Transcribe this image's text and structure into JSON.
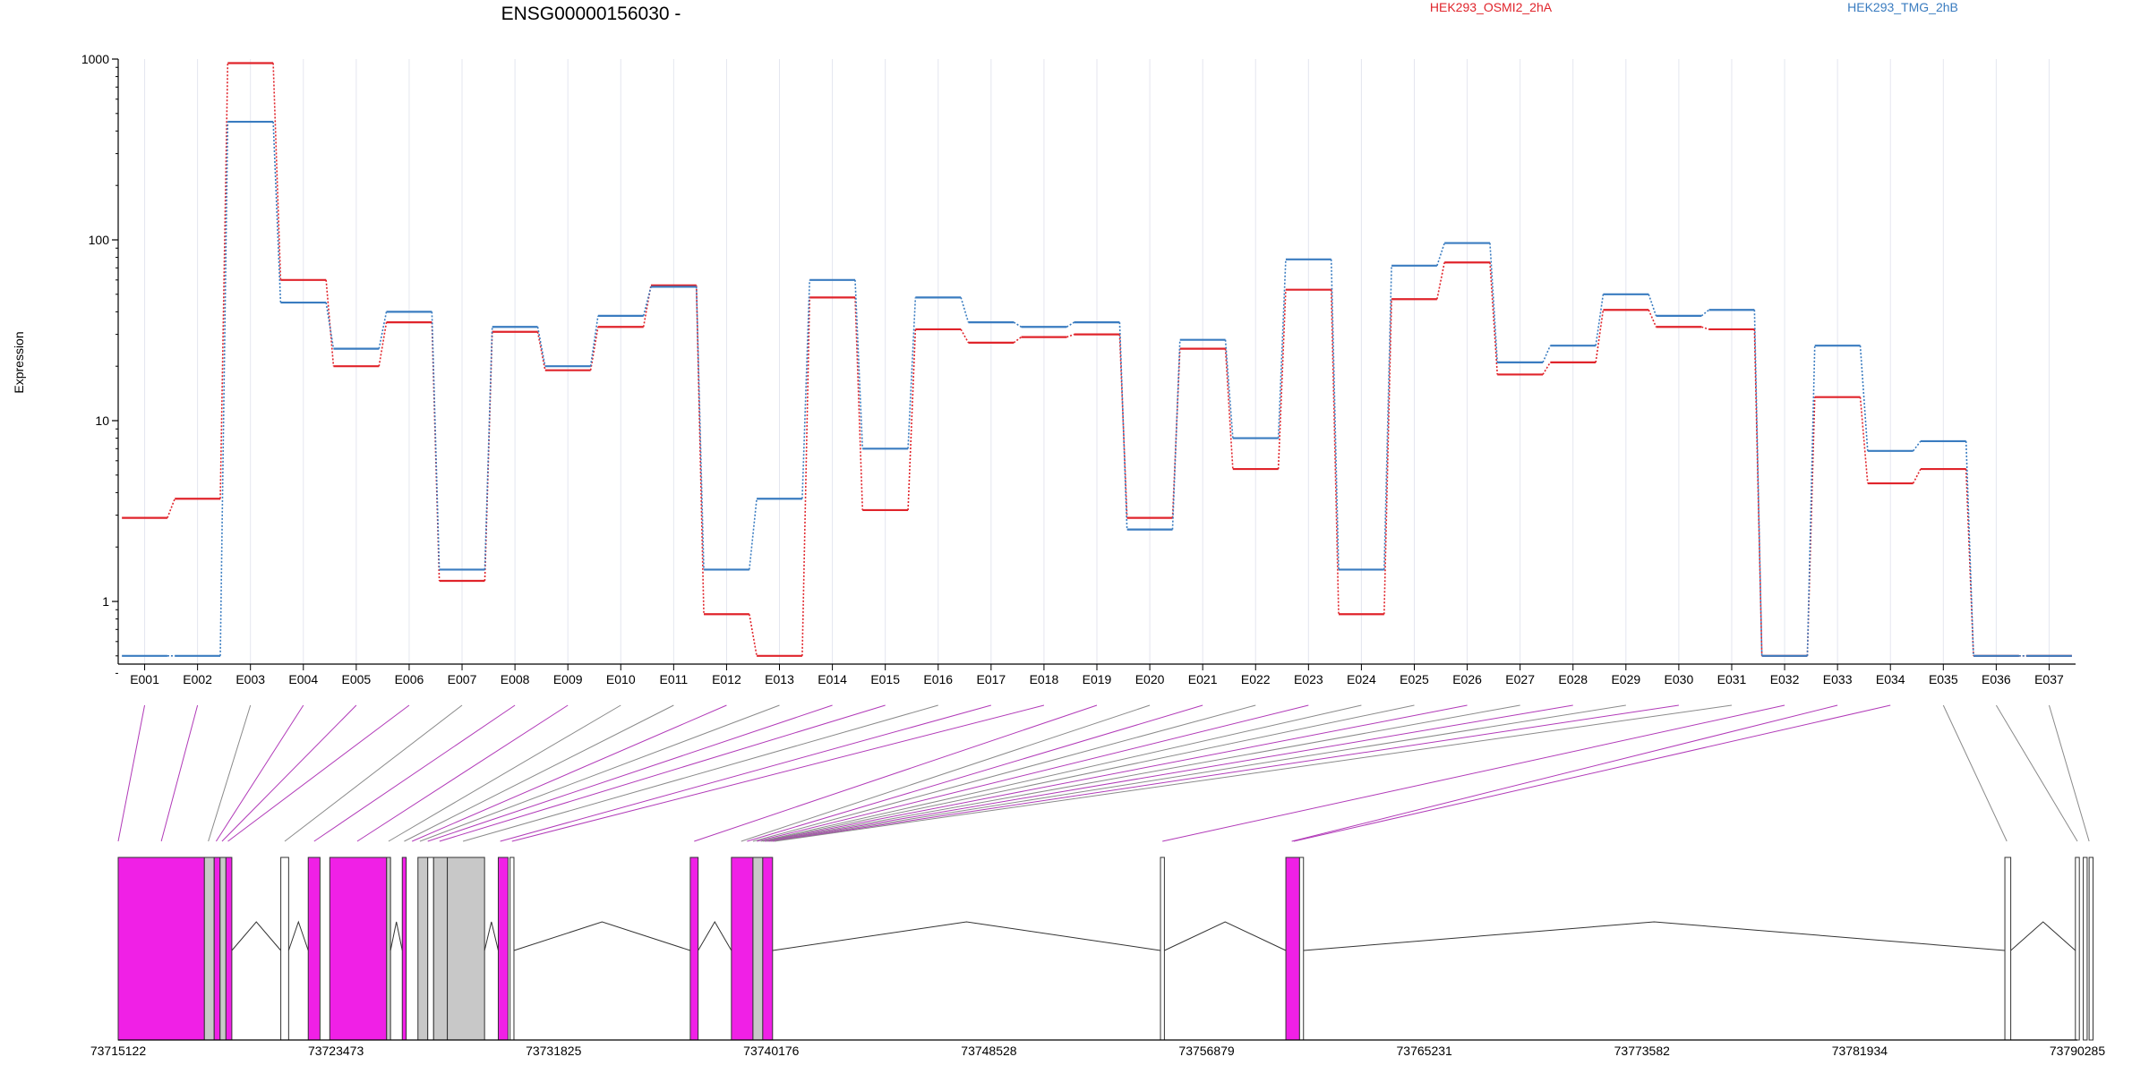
{
  "chart_data": {
    "type": "line",
    "title": "ENSG00000156030 -",
    "ylabel": "Expression",
    "yscale": "log",
    "ylim": [
      0.4,
      1000
    ],
    "yticks": [
      "1",
      "10",
      "100",
      "1000"
    ],
    "grid": "vertical, light",
    "legend_position": "top",
    "categories": [
      "E001",
      "E002",
      "E003",
      "E004",
      "E005",
      "E006",
      "E007",
      "E008",
      "E009",
      "E010",
      "E011",
      "E012",
      "E013",
      "E014",
      "E015",
      "E016",
      "E017",
      "E018",
      "E019",
      "E020",
      "E021",
      "E022",
      "E023",
      "E024",
      "E025",
      "E026",
      "E027",
      "E028",
      "E029",
      "E030",
      "E031",
      "E032",
      "E033",
      "E034",
      "E035",
      "E036",
      "E037"
    ],
    "series": [
      {
        "name": "HEK293_OSMI2_2hA",
        "color": "#e0242b",
        "values": [
          2.9,
          3.7,
          950,
          60,
          20,
          35,
          1.3,
          31,
          19,
          33,
          56,
          0.85,
          0.5,
          48,
          3.2,
          32,
          27,
          29,
          30,
          2.9,
          25,
          5.4,
          53,
          0.85,
          47,
          75,
          18,
          21,
          41,
          33,
          32,
          0.5,
          13.5,
          4.5,
          5.4,
          0.5,
          0.5
        ]
      },
      {
        "name": "HEK293_TMG_2hB",
        "color": "#3a7cc0",
        "values": [
          0.5,
          0.5,
          450,
          45,
          25,
          40,
          1.5,
          33,
          20,
          38,
          55,
          1.5,
          3.7,
          60,
          7,
          48,
          35,
          33,
          35,
          2.5,
          28,
          8,
          78,
          1.5,
          72,
          96,
          21,
          26,
          50,
          38,
          41,
          0.5,
          26,
          6.8,
          7.7,
          0.5,
          0.5
        ]
      }
    ],
    "gene_model": {
      "xticks": [
        "73715122",
        "73723473",
        "73731825",
        "73740176",
        "73748528",
        "73756879",
        "73765231",
        "73773582",
        "73781934",
        "73790285"
      ],
      "magenta_color": "#f020e6",
      "grey_color": "#c8c8c8"
    }
  }
}
